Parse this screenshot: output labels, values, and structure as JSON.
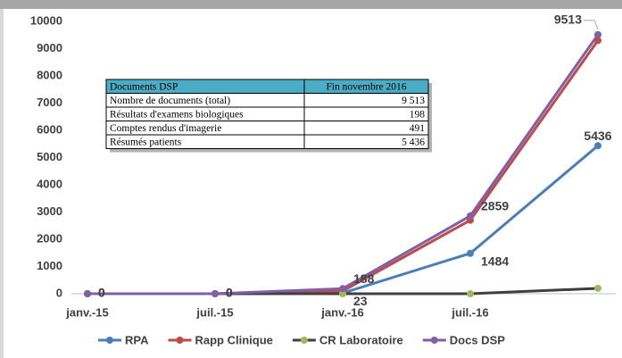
{
  "chart_data": {
    "type": "line",
    "categories": [
      "janv.-15",
      "juil.-15",
      "janv.-16",
      "juil.-16",
      null
    ],
    "series": [
      {
        "name": "RPA",
        "color": "#4a7ebb",
        "line_color": "#4a7ebb",
        "values": [
          0,
          0,
          23,
          1484,
          5436
        ],
        "data_labels": true
      },
      {
        "name": "Rapp Clinique",
        "color": "#be4b48",
        "line_color": "#be4b48",
        "values": [
          0,
          0,
          100,
          2700,
          9300
        ],
        "data_labels": false
      },
      {
        "name": "CR Laboratoire",
        "color": "#9bbb59",
        "line_color": "#3f3f3f",
        "values": [
          0,
          0,
          0,
          0,
          198
        ],
        "data_labels": false
      },
      {
        "name": "Docs DSP",
        "color": "#7e5fa8",
        "line_color": "#7e5fa8",
        "values": [
          0,
          0,
          188,
          2859,
          9513
        ],
        "data_labels": true
      }
    ],
    "ylim": [
      0,
      10000
    ],
    "yticks": [
      0,
      1000,
      2000,
      3000,
      4000,
      5000,
      6000,
      7000,
      8000,
      9000,
      10000
    ],
    "grid": false,
    "legend": "bottom"
  },
  "table": {
    "header": [
      "Documents DSP",
      "Fin novembre 2016"
    ],
    "rows": [
      [
        "Nombre de documents (total)",
        "9 513"
      ],
      [
        "Résultats d'examens biologiques",
        "198"
      ],
      [
        "Comptes rendus d'imagerie",
        "491"
      ],
      [
        "Résumés patients",
        "5 436"
      ]
    ]
  }
}
